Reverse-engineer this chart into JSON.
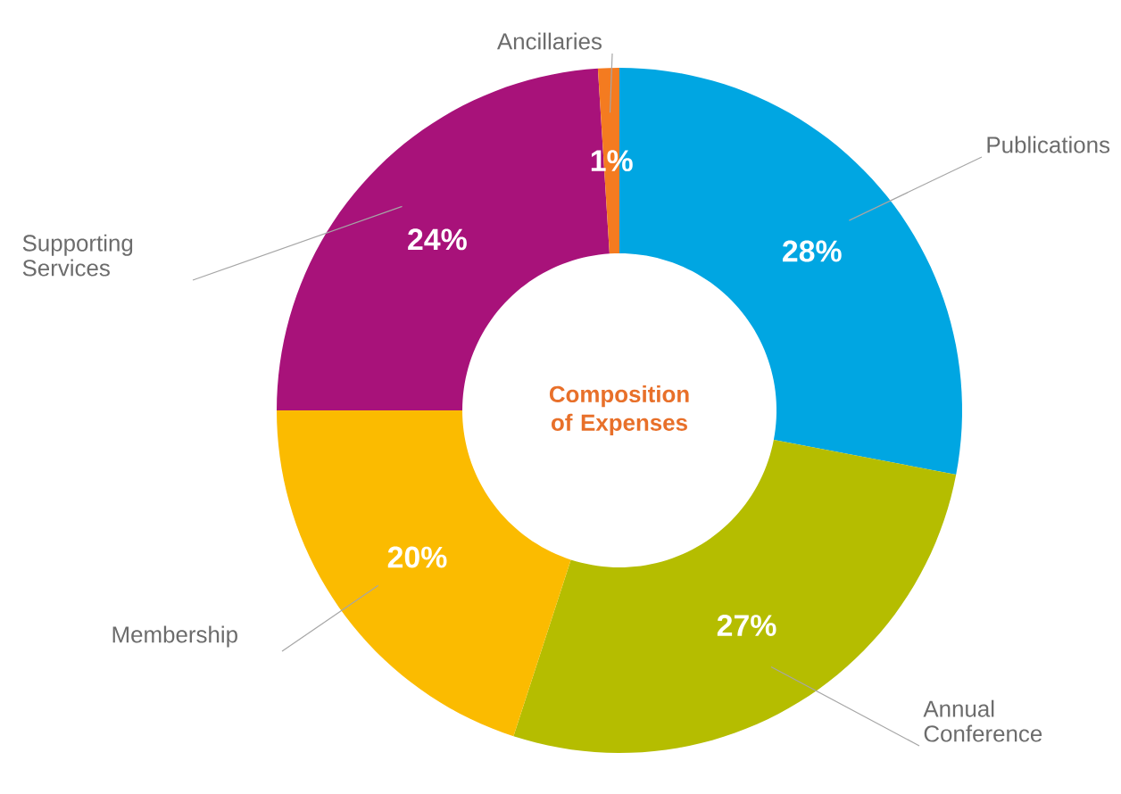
{
  "chart_data": {
    "type": "donut",
    "title": "Composition of Expenses",
    "categories": [
      "Publications",
      "Annual Conference",
      "Membership",
      "Supporting Services",
      "Ancillaries"
    ],
    "values": [
      28,
      27,
      20,
      24,
      1
    ],
    "colors": [
      "#00a6e2",
      "#b5bd00",
      "#fbbb00",
      "#a8127a",
      "#f47b20"
    ],
    "value_labels": [
      "28%",
      "27%",
      "20%",
      "24%",
      "1%"
    ]
  }
}
